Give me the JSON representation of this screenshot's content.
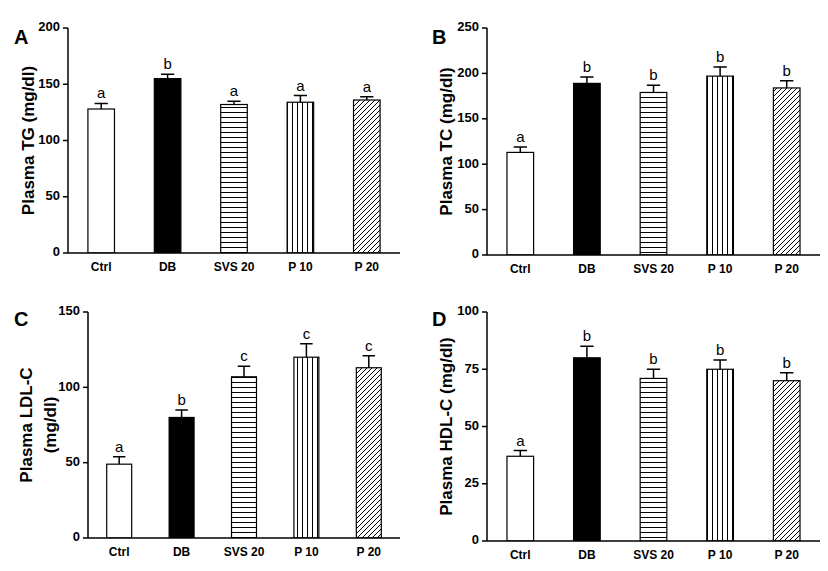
{
  "chart_data": [
    {
      "type": "bar",
      "title": "A",
      "y_label": "Plasma TG (mg/dl)",
      "categories": [
        "Ctrl",
        "DB",
        "SVS 20",
        "P 10",
        "P 20"
      ],
      "values": [
        128,
        155,
        132,
        134,
        136
      ],
      "errors": [
        5,
        4,
        3,
        6,
        3
      ],
      "letters": [
        "a",
        "b",
        "a",
        "a",
        "a"
      ],
      "ylim": [
        0,
        200
      ],
      "yticks": [
        0,
        50,
        100,
        150,
        200
      ],
      "grid": false
    },
    {
      "type": "bar",
      "title": "B",
      "y_label": "Plasma TC (mg/dl)",
      "categories": [
        "Ctrl",
        "DB",
        "SVS 20",
        "P 10",
        "P 20"
      ],
      "values": [
        113,
        189,
        179,
        197,
        184
      ],
      "errors": [
        6,
        7,
        8,
        10,
        8
      ],
      "letters": [
        "a",
        "b",
        "b",
        "b",
        "b"
      ],
      "ylim": [
        0,
        250
      ],
      "yticks": [
        0,
        50,
        100,
        150,
        200,
        250
      ],
      "grid": false
    },
    {
      "type": "bar",
      "title": "C",
      "y_label": "Plasma LDL-C\n(mg/dl)",
      "categories": [
        "Ctrl",
        "DB",
        "SVS 20",
        "P 10",
        "P 20"
      ],
      "values": [
        49,
        80,
        107,
        120,
        113
      ],
      "errors": [
        5,
        5,
        7,
        9,
        8
      ],
      "letters": [
        "a",
        "b",
        "c",
        "c",
        "c"
      ],
      "ylim": [
        0,
        150
      ],
      "yticks": [
        0,
        50,
        100,
        150
      ],
      "grid": false
    },
    {
      "type": "bar",
      "title": "D",
      "y_label": "Plasma HDL-C (mg/dl)",
      "categories": [
        "Ctrl",
        "DB",
        "SVS 20",
        "P 10",
        "P 20"
      ],
      "values": [
        37,
        80,
        71,
        75,
        70
      ],
      "errors": [
        2.5,
        5,
        4,
        4,
        3.5
      ],
      "letters": [
        "a",
        "b",
        "b",
        "b",
        "b"
      ],
      "ylim": [
        0,
        100
      ],
      "yticks": [
        0,
        25,
        50,
        75,
        100
      ],
      "grid": false
    }
  ]
}
